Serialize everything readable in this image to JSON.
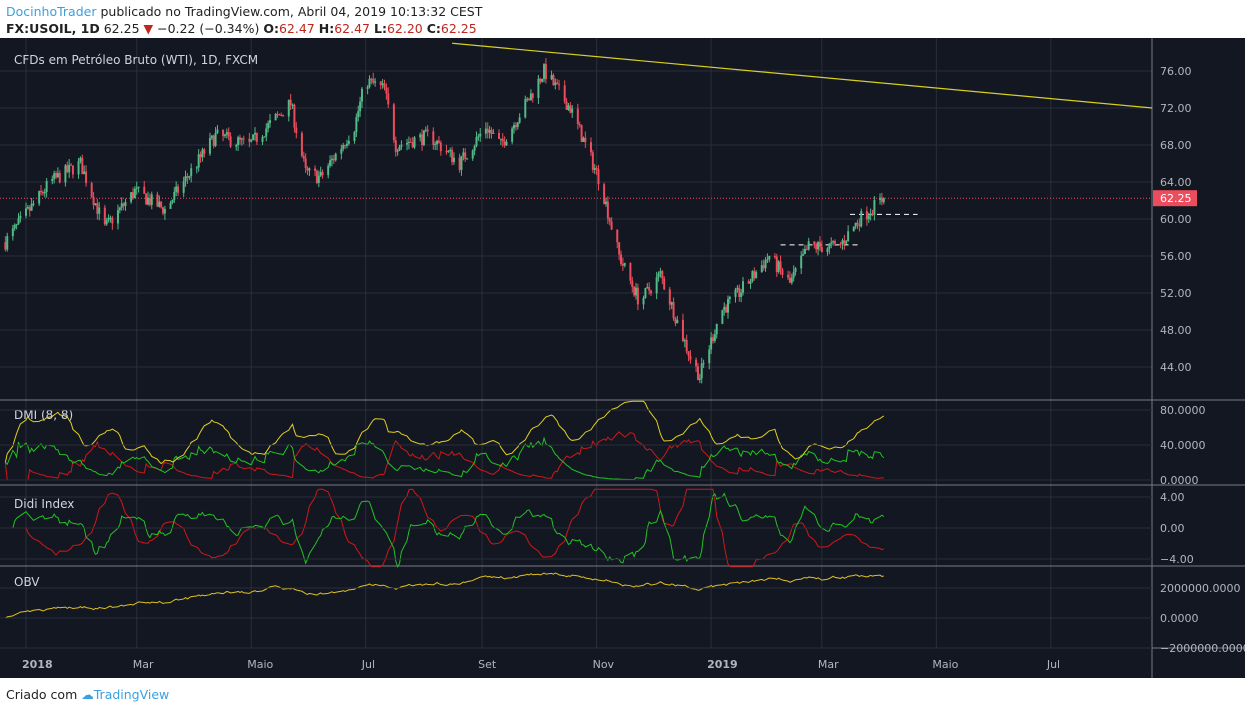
{
  "header": {
    "user": "DocinhoTrader",
    "published": "publicado no TradingView.com, Abril 04, 2019 10:13:32 CEST",
    "symbol": "FX:USOIL, 1D",
    "last": "62.25",
    "change": "−0.22 (−0.34%)",
    "o_label": "O:",
    "o": "62.47",
    "h_label": "H:",
    "h": "62.47",
    "l_label": "L:",
    "l": "62.20",
    "c_label": "C:",
    "c": "62.25"
  },
  "footer": {
    "created": "Criado com",
    "brand": "TradingView"
  },
  "colors": {
    "bg": "#131722",
    "up": "#53b987",
    "down": "#eb4d5c",
    "grid": "#2a2e39",
    "dmi_plus": "#22c322",
    "dmi_minus": "#d01818",
    "adx": "#e0d020",
    "obv": "#e0c020",
    "trend": "#d8d020"
  },
  "chart_data": {
    "type": "candlestick",
    "title": "CFDs em Petróleo Bruto (WTI), 1D, FXCM",
    "price_ticks": [
      "76.00",
      "72.00",
      "68.00",
      "64.00",
      "60.00",
      "56.00",
      "52.00",
      "48.00",
      "44.00"
    ],
    "time_labels": [
      {
        "label": "2018",
        "day": 0,
        "bold": true
      },
      {
        "label": "Mar",
        "day": 59
      },
      {
        "label": "Maio",
        "day": 120
      },
      {
        "label": "Jul",
        "day": 181
      },
      {
        "label": "Set",
        "day": 243
      },
      {
        "label": "Nov",
        "day": 304
      },
      {
        "label": "2019",
        "day": 365,
        "bold": true
      },
      {
        "label": "Mar",
        "day": 424
      },
      {
        "label": "Maio",
        "day": 485
      },
      {
        "label": "Jul",
        "day": 546
      }
    ],
    "close_path_day_price": [
      [
        -11,
        57.5
      ],
      [
        13,
        64
      ],
      [
        29,
        66
      ],
      [
        42,
        59
      ],
      [
        58,
        63
      ],
      [
        74,
        61
      ],
      [
        101,
        69
      ],
      [
        119,
        68
      ],
      [
        141,
        72.5
      ],
      [
        149,
        65
      ],
      [
        157,
        64.5
      ],
      [
        175,
        70
      ],
      [
        181,
        75
      ],
      [
        191,
        74
      ],
      [
        197,
        68
      ],
      [
        215,
        69
      ],
      [
        231,
        66
      ],
      [
        245,
        70
      ],
      [
        253,
        68
      ],
      [
        268,
        73
      ],
      [
        276,
        76
      ],
      [
        290,
        72
      ],
      [
        306,
        64
      ],
      [
        316,
        56
      ],
      [
        327,
        51
      ],
      [
        338,
        54
      ],
      [
        354,
        45
      ],
      [
        359,
        43
      ],
      [
        370,
        50
      ],
      [
        380,
        52
      ],
      [
        396,
        56
      ],
      [
        407,
        53
      ],
      [
        417,
        57
      ],
      [
        433,
        57
      ],
      [
        444,
        60
      ],
      [
        457,
        62.25
      ]
    ],
    "last_price": 62.25,
    "last_price_label": "62.25",
    "trendline": [
      [
        227,
        79.0
      ],
      [
        600,
        72.0
      ]
    ],
    "dashed_levels": [
      {
        "from": 402,
        "to": 445,
        "price": 57.2
      },
      {
        "from": 439,
        "to": 475,
        "price": 60.5
      }
    ],
    "indicators": [
      {
        "name": "DMI (8, 8)",
        "ticks": [
          "80.0000",
          "40.0000",
          "0.0000"
        ]
      },
      {
        "name": "Didi Index",
        "ticks": [
          "4.00",
          "0.00",
          "−4.00"
        ]
      },
      {
        "name": "OBV",
        "ticks": [
          "2000000.0000",
          "0.0000",
          "−2000000.0000"
        ]
      }
    ]
  }
}
